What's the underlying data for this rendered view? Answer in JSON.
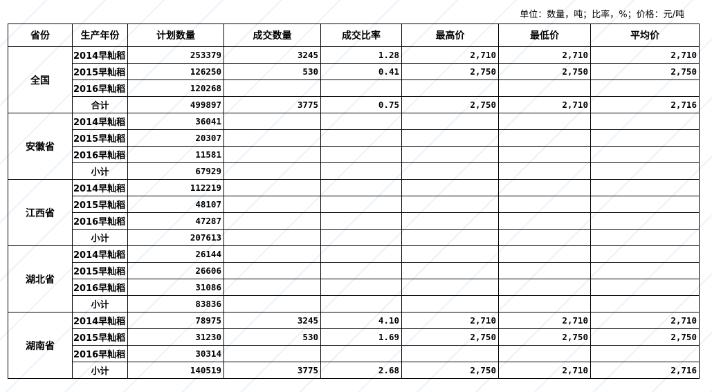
{
  "unit_note": "单位：数量，吨；比率，%；价格：元/吨",
  "headers": [
    "省份",
    "生产年份",
    "计划数量",
    "成交数量",
    "成交比率",
    "最高价",
    "最低价",
    "平均价"
  ],
  "groups": [
    {
      "province": "全国",
      "rows": [
        [
          "2014早籼稻",
          "253379",
          "3245",
          "1.28",
          "2,710",
          "2,710",
          "2,710"
        ],
        [
          "2015早籼稻",
          "126250",
          "530",
          "0.41",
          "2,750",
          "2,750",
          "2,750"
        ],
        [
          "2016早籼稻",
          "120268",
          "",
          "",
          "",
          "",
          ""
        ],
        [
          "合计",
          "499897",
          "3775",
          "0.75",
          "2,750",
          "2,710",
          "2,716"
        ]
      ]
    },
    {
      "province": "安徽省",
      "rows": [
        [
          "2014早籼稻",
          "36041",
          "",
          "",
          "",
          "",
          ""
        ],
        [
          "2015早籼稻",
          "20307",
          "",
          "",
          "",
          "",
          ""
        ],
        [
          "2016早籼稻",
          "11581",
          "",
          "",
          "",
          "",
          ""
        ],
        [
          "小计",
          "67929",
          "",
          "",
          "",
          "",
          ""
        ]
      ]
    },
    {
      "province": "江西省",
      "rows": [
        [
          "2014早籼稻",
          "112219",
          "",
          "",
          "",
          "",
          ""
        ],
        [
          "2015早籼稻",
          "48107",
          "",
          "",
          "",
          "",
          ""
        ],
        [
          "2016早籼稻",
          "47287",
          "",
          "",
          "",
          "",
          ""
        ],
        [
          "小计",
          "207613",
          "",
          "",
          "",
          "",
          ""
        ]
      ]
    },
    {
      "province": "湖北省",
      "rows": [
        [
          "2014早籼稻",
          "26144",
          "",
          "",
          "",
          "",
          ""
        ],
        [
          "2015早籼稻",
          "26606",
          "",
          "",
          "",
          "",
          ""
        ],
        [
          "2016早籼稻",
          "31086",
          "",
          "",
          "",
          "",
          ""
        ],
        [
          "小计",
          "83836",
          "",
          "",
          "",
          "",
          ""
        ]
      ]
    },
    {
      "province": "湖南省",
      "rows": [
        [
          "2014早籼稻",
          "78975",
          "3245",
          "4.10",
          "2,710",
          "2,710",
          "2,710"
        ],
        [
          "2015早籼稻",
          "31230",
          "530",
          "1.69",
          "2,750",
          "2,750",
          "2,750"
        ],
        [
          "2016早籼稻",
          "30314",
          "",
          "",
          "",
          "",
          ""
        ],
        [
          "小计",
          "140519",
          "3775",
          "2.68",
          "2,750",
          "2,710",
          "2,716"
        ]
      ]
    }
  ]
}
